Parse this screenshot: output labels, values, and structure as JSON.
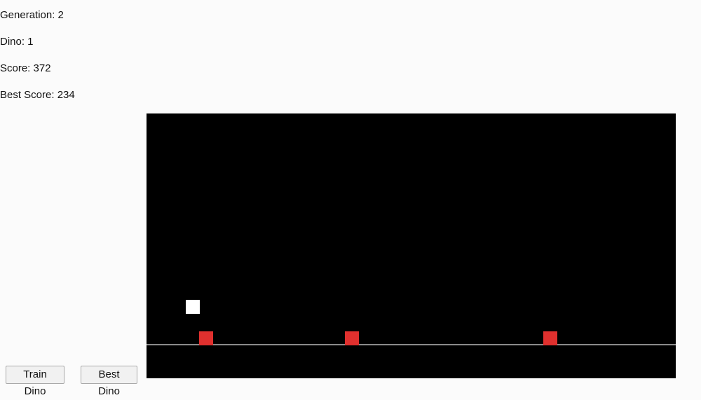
{
  "stats": {
    "generation": "Generation: 2",
    "dino": "Dino: 1",
    "score": "Score: 372",
    "best_score": "Best Score: 234"
  },
  "buttons": {
    "train_label": "Train Dino",
    "best_label": "Best Dino"
  },
  "game": {
    "background_color": "#000000",
    "ground_color": "#8a8a8a",
    "dino_color": "#ffffff",
    "obstacle_color": "#e0302e"
  }
}
